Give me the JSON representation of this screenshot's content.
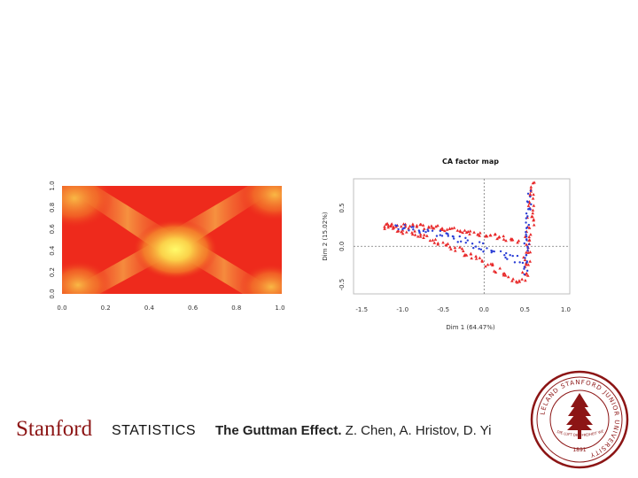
{
  "heatmap": {
    "x_ticks": [
      "0.0",
      "0.2",
      "0.4",
      "0.6",
      "0.8",
      "1.0"
    ],
    "y_ticks": [
      "0.0",
      "0.2",
      "0.4",
      "0.6",
      "0.8",
      "1.0"
    ],
    "colors": {
      "low": "#ee2a1c",
      "mid": "#f7a127",
      "high": "#fffb6a"
    }
  },
  "ca_plot": {
    "title": "CA factor map",
    "xlabel": "Dim 1 (64.47%)",
    "ylabel": "Dim 2 (15.02%)",
    "x_ticks": [
      "-1.5",
      "-1.0",
      "-0.5",
      "0.0",
      "0.5",
      "1.0"
    ],
    "y_ticks": [
      "-0.5",
      "0.0",
      "0.5"
    ],
    "xlim": [
      -1.6,
      1.05
    ],
    "ylim": [
      -0.62,
      0.88
    ],
    "series_colors": {
      "rows": "#2b3fd6",
      "cols": "#e8292a"
    }
  },
  "footer": {
    "brand": "Stanford",
    "dept": "STATISTICS",
    "citation_title": "The Guttman Effect.",
    "citation_authors": " Z. Chen, A. Hristov, D. Yi"
  },
  "seal": {
    "ring_text": "LELAND STANFORD JUNIOR UNIVERSITY",
    "motto": "DIE LUFT DER FREIHEIT WEHT",
    "year": "1891"
  }
}
